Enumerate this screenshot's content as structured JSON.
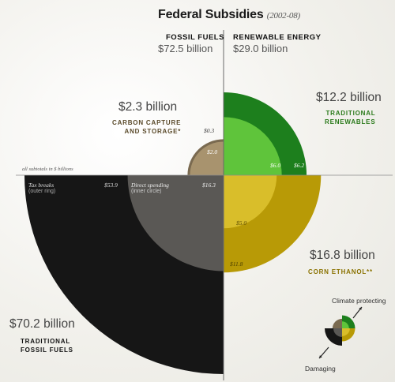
{
  "title": "Federal Subsidies",
  "title_period": "(2002-08)",
  "headers": {
    "fossil_label": "FOSSIL FUELS",
    "fossil_total": "$72.5 billion",
    "renewable_label": "RENEWABLE ENERGY",
    "renewable_total": "$29.0 billion"
  },
  "annotations": {
    "ccs_total": "$2.3 billion",
    "ccs_line1": "CARBON CAPTURE",
    "ccs_line2": "AND STORAGE*",
    "trad_renew_total": "$12.2 billion",
    "trad_renew_line1": "TRADITIONAL",
    "trad_renew_line2": "RENEWABLES",
    "corn_total": "$16.8 billion",
    "corn_line": "CORN ETHANOL**",
    "fossil_total": "$70.2 billion",
    "fossil_line1": "TRADITIONAL",
    "fossil_line2": "FOSSIL FUELS",
    "units_note": "all subtotals in $ billions",
    "tax_label": "Tax breaks",
    "tax_sub": "(outer ring)",
    "direct_label": "Direct spending",
    "direct_sub": "(inner circle)"
  },
  "legend": {
    "top": "Climate protecting",
    "bottom": "Damaging"
  },
  "colors": {
    "fossil_outer": "#161616",
    "fossil_inner": "#5a5855",
    "ccs_outer": "#7a6a50",
    "ccs_inner": "#a8936e",
    "renew_outer": "#1d7f1d",
    "renew_inner": "#5fc43b",
    "corn_outer": "#b89a06",
    "corn_inner": "#d9be2a",
    "ccs_text": "#5a4a2a",
    "renew_text": "#2a7a1a",
    "corn_text": "#8a7200"
  },
  "chart_data": {
    "type": "pie",
    "title": "Federal Subsidies (2002-08)",
    "unit": "$ billions",
    "groups": [
      {
        "name": "FOSSIL FUELS",
        "total": 72.5
      },
      {
        "name": "RENEWABLE ENERGY",
        "total": 29.0
      }
    ],
    "categories": [
      {
        "name": "TRADITIONAL FOSSIL FUELS",
        "group": "FOSSIL FUELS",
        "total": 70.2,
        "tax_breaks": 53.9,
        "direct_spending": 16.3
      },
      {
        "name": "CARBON CAPTURE AND STORAGE*",
        "group": "FOSSIL FUELS",
        "total": 2.3,
        "tax_breaks": 0.3,
        "direct_spending": 2.0
      },
      {
        "name": "TRADITIONAL RENEWABLES",
        "group": "RENEWABLE ENERGY",
        "total": 12.2,
        "tax_breaks": 6.2,
        "direct_spending": 6.0
      },
      {
        "name": "CORN ETHANOL**",
        "group": "RENEWABLE ENERGY",
        "total": 16.8,
        "tax_breaks": 11.8,
        "direct_spending": 5.0
      }
    ],
    "value_labels": {
      "fossil_tax": "$53.9",
      "fossil_direct": "$16.3",
      "ccs_tax": "$0.3",
      "ccs_direct": "$2.0",
      "renew_direct": "$6.0",
      "renew_tax": "$6.2",
      "corn_direct": "$5.0",
      "corn_tax": "$11.8"
    }
  }
}
